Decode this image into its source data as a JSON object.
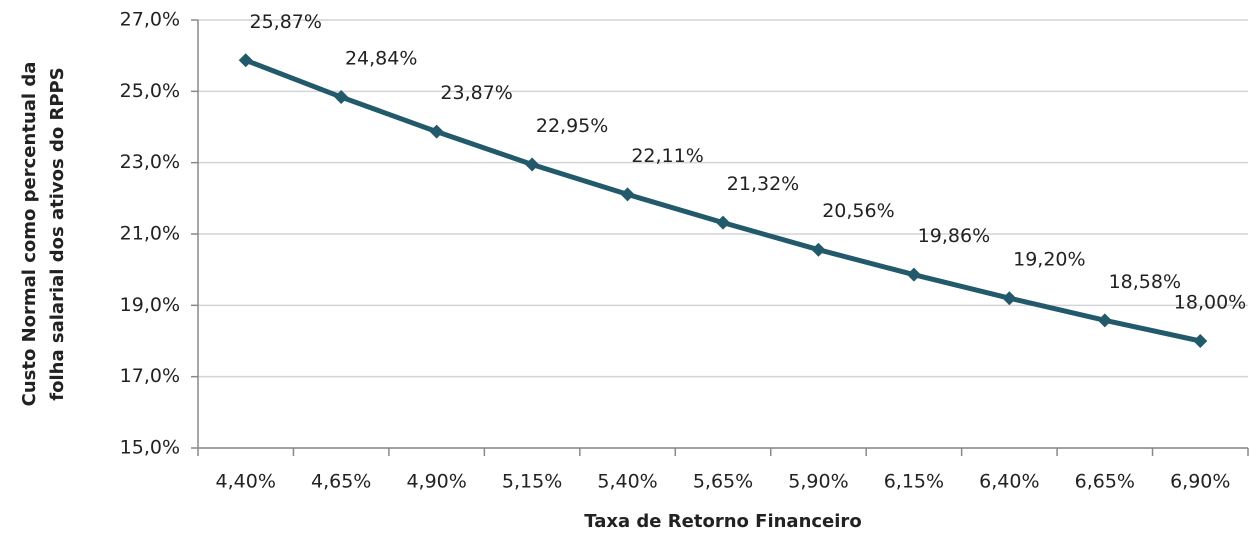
{
  "chart_data": {
    "type": "line",
    "xlabel": "Taxa de Retorno Financeiro",
    "ylabel": [
      "Custo Normal como percentual da",
      "folha salarial dos ativos do RPPS"
    ],
    "categories": [
      "4,40%",
      "4,65%",
      "4,90%",
      "5,15%",
      "5,40%",
      "5,65%",
      "5,90%",
      "6,15%",
      "6,40%",
      "6,65%",
      "6,90%"
    ],
    "series": [
      {
        "color": "#235a6b",
        "values": [
          25.87,
          24.84,
          23.87,
          22.95,
          22.11,
          21.32,
          20.56,
          19.86,
          19.2,
          18.58,
          18.0
        ],
        "value_labels": [
          "25,87%",
          "24,84%",
          "23,87%",
          "22,95%",
          "22,11%",
          "21,32%",
          "20,56%",
          "19,86%",
          "19,20%",
          "18,58%",
          "18,00%"
        ]
      }
    ],
    "ylim": [
      15,
      27
    ],
    "yticks": [
      {
        "value": 15,
        "label": "15,0%"
      },
      {
        "value": 17,
        "label": "17,0%"
      },
      {
        "value": 19,
        "label": "19,0%"
      },
      {
        "value": 21,
        "label": "21,0%"
      },
      {
        "value": 23,
        "label": "23,0%"
      },
      {
        "value": 25,
        "label": "25,0%"
      },
      {
        "value": 27,
        "label": "27,0%"
      }
    ],
    "grid": true
  }
}
